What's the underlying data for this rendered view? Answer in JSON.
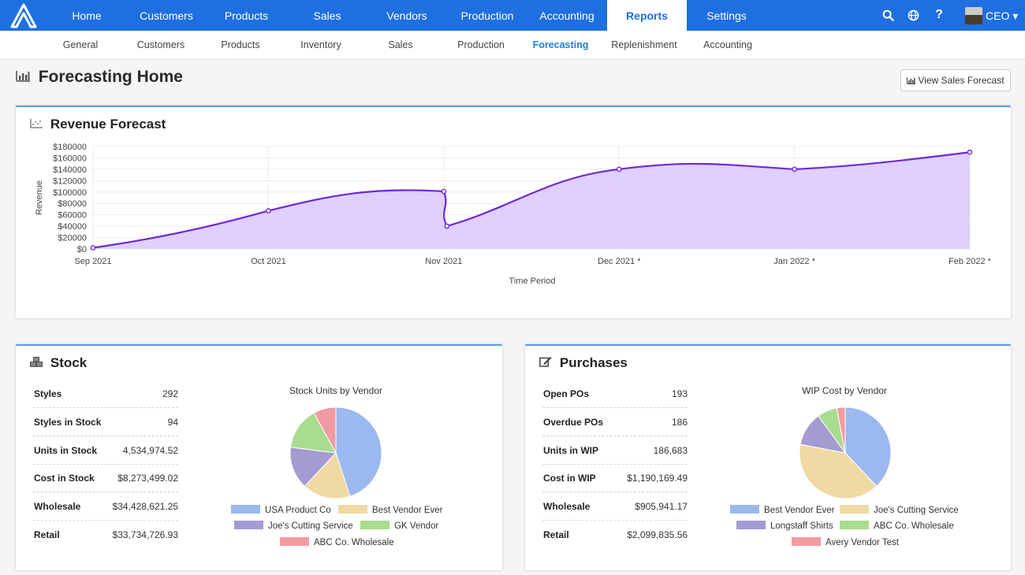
{
  "colors": {
    "primary": "#1f6fe0",
    "accent": "#1f7fd6",
    "line": "#6d28d9",
    "area": "#d9c8ff"
  },
  "nav": {
    "items": [
      "Home",
      "Customers",
      "Products",
      "Sales",
      "Vendors",
      "Production",
      "Accounting",
      "Reports",
      "Settings"
    ],
    "active": "Reports",
    "icons": [
      "search-icon",
      "globe-icon",
      "help-icon"
    ],
    "user": "CEO ▾"
  },
  "subnav": {
    "items": [
      "General",
      "Customers",
      "Products",
      "Inventory",
      "Sales",
      "Production",
      "Forecasting",
      "Replenishment",
      "Accounting"
    ],
    "active": "Forecasting"
  },
  "page": {
    "title": "Forecasting Home",
    "view_button": "View Sales Forecast"
  },
  "revenue": {
    "title": "Revenue Forecast",
    "chart_data": {
      "type": "area",
      "categories": [
        "Sep 2021",
        "Oct 2021",
        "Nov 2021",
        "Dec 2021 *",
        "Jan 2022 *",
        "Feb 2022 *"
      ],
      "series": [
        {
          "values": [
            2000,
            67000,
            101000,
            140000,
            140000,
            170000
          ]
        }
      ],
      "nov_dip": 40000,
      "xlabel": "Time Period",
      "ylabel": "Revenue",
      "yticks": [
        "$0",
        "$20000",
        "$40000",
        "$60000",
        "$80000",
        "$100000",
        "$120000",
        "$140000",
        "$160000",
        "$180000"
      ],
      "ylim": [
        0,
        180000
      ]
    }
  },
  "stock": {
    "title": "Stock",
    "stats": [
      {
        "label": "Styles",
        "value": "292"
      },
      {
        "label": "Styles in Stock",
        "value": "94"
      },
      {
        "label": "Units in Stock",
        "value": "4,534,974.52"
      },
      {
        "label": "Cost in Stock",
        "value": "$8,273,499.02"
      },
      {
        "label": "Wholesale",
        "value": "$34,428,621.25"
      },
      {
        "label": "Retail",
        "value": "$33,734,726.93"
      }
    ],
    "chart_data": {
      "type": "pie",
      "title": "Stock Units by Vendor",
      "labels": [
        "USA Product Co",
        "Best Vendor Ever",
        "Joe's Cutting Service",
        "GK Vendor",
        "ABC Co. Wholesale"
      ],
      "values": [
        45,
        17,
        15,
        15,
        8
      ],
      "colors": [
        "#9bb8ef",
        "#f0d9a3",
        "#a39bd1",
        "#a8dc8e",
        "#f29aa3"
      ]
    }
  },
  "purchases": {
    "title": "Purchases",
    "stats": [
      {
        "label": "Open POs",
        "value": "193"
      },
      {
        "label": "Overdue POs",
        "value": "186"
      },
      {
        "label": "Units in WIP",
        "value": "186,683"
      },
      {
        "label": "Cost in WIP",
        "value": "$1,190,169.49"
      },
      {
        "label": "Wholesale",
        "value": "$905,941.17"
      },
      {
        "label": "Retail",
        "value": "$2,099,835.56"
      }
    ],
    "chart_data": {
      "type": "pie",
      "title": "WIP Cost by Vendor",
      "labels": [
        "Best Vendor Ever",
        "Joe's Cutting Service",
        "Longstaff Shirts",
        "ABC Co. Wholesale",
        "Avery Vendor Test"
      ],
      "values": [
        38,
        40,
        12,
        7,
        3
      ],
      "colors": [
        "#9bb8ef",
        "#f0d9a3",
        "#a39bd1",
        "#a8dc8e",
        "#f29aa3"
      ]
    }
  }
}
